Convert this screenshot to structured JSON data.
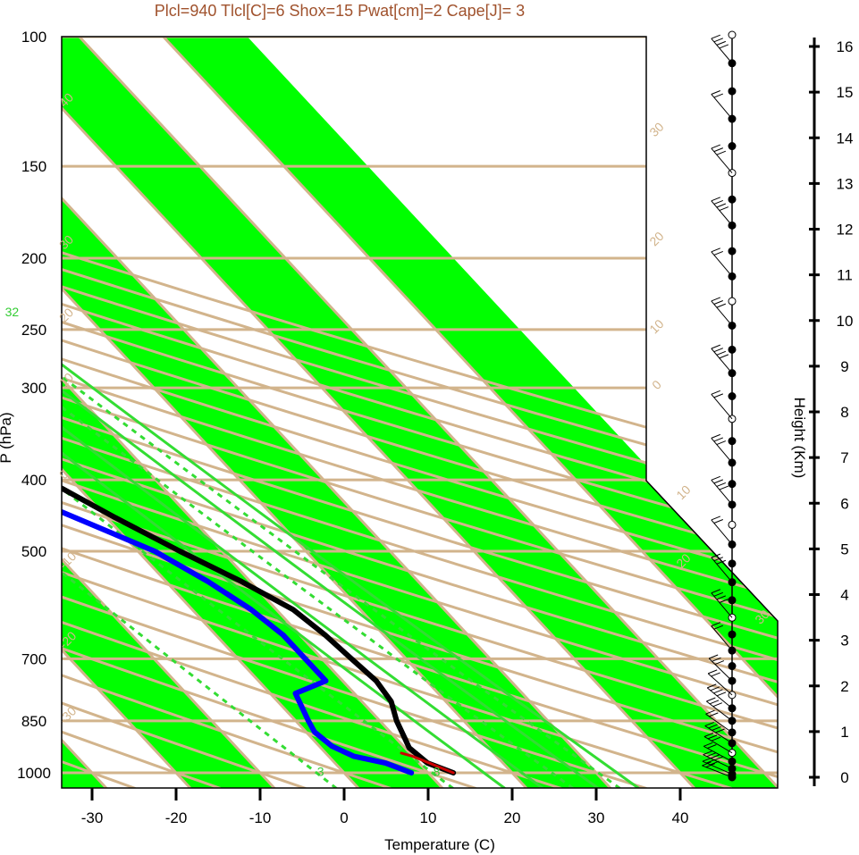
{
  "title": "Plcl=940 Tlcl[C]=6 Shox=15 Pwat[cm]=2 Cape[J]= 3",
  "axes": {
    "xlabel": "Temperature (C)",
    "ylabel": "P (hPa)",
    "height_label": "Height (Km)",
    "x_ticks": [
      "-30",
      "-20",
      "-10",
      "0",
      "10",
      "20",
      "30",
      "40"
    ],
    "p_ticks": [
      "100",
      "150",
      "200",
      "250",
      "300",
      "400",
      "500",
      "700",
      "850",
      "1000"
    ],
    "height_ticks": [
      "0",
      "1",
      "2",
      "3",
      "4",
      "5",
      "6",
      "7",
      "8",
      "9",
      "10",
      "11",
      "12",
      "13",
      "14",
      "15",
      "16"
    ]
  },
  "colors": {
    "bands": "#00ff00",
    "isobars": "#d2b48c",
    "mixing": "#33dd33",
    "temperature": "#000000",
    "dewpoint": "#0000ff",
    "parcel": "#cc0000",
    "title": "#a0522d"
  },
  "chart_data": {
    "type": "skew-t",
    "title": "Plcl=940 Tlcl[C]=6 Shox=15 Pwat[cm]=2 Cape[J]= 3",
    "xlabel": "Temperature (C)",
    "ylabel": "P (hPa)",
    "xlim": [
      -34,
      44
    ],
    "plim": [
      1050,
      100
    ],
    "isobars": [
      100,
      150,
      200,
      250,
      300,
      400,
      500,
      700,
      850,
      1000
    ],
    "isotherm_labels": [
      "50",
      "60",
      "70",
      "80",
      "90",
      "100",
      "110",
      "120",
      "130",
      "140",
      "150",
      "160",
      "30",
      "20",
      "10",
      "0",
      "10",
      "20",
      "30",
      "40",
      "30",
      "20",
      "10",
      "0",
      "-10",
      "-20",
      "-30"
    ],
    "mixing_ratio_labels": [
      "12",
      "16",
      "24",
      "32",
      "3",
      "8"
    ],
    "temperature": {
      "name": "",
      "p": [
        1000,
        970,
        925,
        900,
        850,
        800,
        750,
        700,
        650,
        600,
        550,
        500,
        450,
        400,
        350,
        300,
        250,
        200,
        170,
        150,
        130,
        100
      ],
      "t": [
        13,
        11,
        10.5,
        11,
        12,
        13.5,
        14,
        13.5,
        13,
        12,
        9,
        5,
        1,
        -3,
        -8,
        -13,
        -17,
        -23,
        -28,
        -33,
        -40,
        -58
      ]
    },
    "dewpoint": {
      "name": "",
      "p": [
        1000,
        970,
        950,
        920,
        880,
        850,
        780,
        750,
        700,
        650,
        600,
        550,
        500,
        440,
        400,
        370,
        340,
        300,
        250,
        200,
        180,
        130,
        100
      ],
      "td": [
        8,
        6,
        3,
        1.5,
        1,
        1.5,
        3,
        8,
        8,
        8,
        7,
        5,
        2,
        -5,
        -8,
        -10,
        -12,
        -16,
        -24,
        -33,
        -40,
        -48,
        -70
      ]
    },
    "parcel": {
      "p": [
        1000,
        975,
        950,
        940
      ],
      "t": [
        13,
        11.5,
        10,
        9
      ]
    },
    "wind_barbs_count": 40,
    "height_km": [
      0,
      16
    ]
  }
}
